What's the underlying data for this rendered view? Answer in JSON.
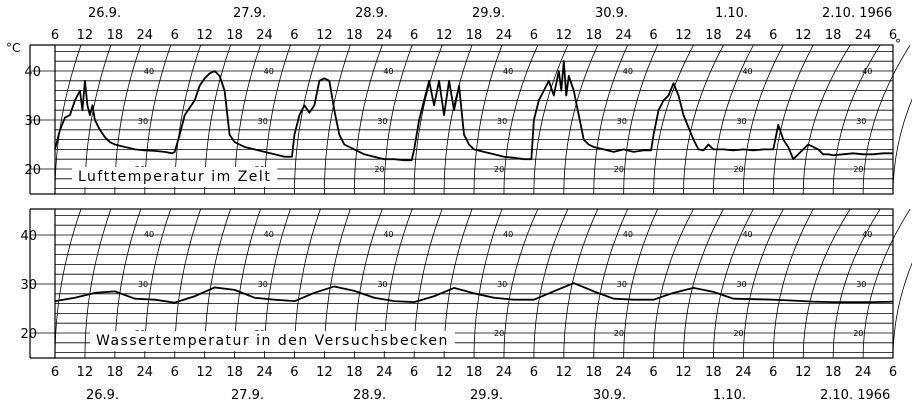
{
  "chart_data": [
    {
      "type": "line",
      "title": "Lufttemperatur im Zelt",
      "ylabel": "°C",
      "yunit_right": "°",
      "ylim": [
        16,
        46
      ],
      "y_ticks": [
        20,
        30,
        40
      ],
      "x_hour_labels": [
        "6",
        "12",
        "18",
        "24",
        "6",
        "12",
        "18",
        "24",
        "6",
        "12",
        "18",
        "24",
        "6",
        "12",
        "18",
        "24",
        "6",
        "12",
        "18",
        "24",
        "6",
        "12",
        "18",
        "24",
        "6",
        "12",
        "18",
        "24",
        "6"
      ],
      "date_labels": [
        "26.9.",
        "27.9.",
        "28.9.",
        "29.9.",
        "30.9.",
        "1.10.",
        "2.10. 1966"
      ],
      "inner_scale_labels": [
        "40",
        "30",
        "20"
      ],
      "x": [
        0,
        1,
        2,
        3,
        4,
        5,
        5.5,
        6,
        6.5,
        7,
        7.5,
        8,
        9,
        10,
        11,
        12,
        14,
        16,
        18,
        20,
        22,
        23.5,
        24,
        25,
        26,
        28,
        29,
        30,
        31,
        32,
        33,
        34,
        35,
        36,
        37,
        38,
        40,
        42,
        44,
        46,
        47.5,
        48,
        49,
        50,
        51,
        52,
        53,
        54,
        55,
        56,
        57,
        58,
        60,
        62,
        64,
        66,
        68,
        70,
        71.5,
        72,
        73,
        74,
        75,
        76,
        77,
        78,
        79,
        80,
        81,
        82,
        83,
        84,
        86,
        88,
        90,
        92,
        94,
        95.5,
        96,
        97,
        98,
        99,
        100,
        101,
        101.5,
        102,
        102.5,
        103,
        104,
        105,
        106,
        107,
        108,
        110,
        112,
        114,
        116,
        118,
        119.5,
        120,
        121,
        122,
        123,
        124,
        125,
        126,
        127,
        128,
        129,
        130,
        131,
        132,
        134,
        136,
        138,
        140,
        142,
        144,
        145,
        146,
        147,
        148,
        149,
        150,
        151,
        152,
        153,
        154,
        155,
        156,
        158,
        160,
        162,
        164,
        166,
        168
      ],
      "y": [
        24,
        28,
        30.5,
        31,
        34,
        36,
        32,
        38,
        33,
        31,
        33,
        30,
        28,
        26.5,
        25.5,
        25,
        24.5,
        24,
        23.8,
        23.7,
        23.5,
        23.2,
        23.5,
        27,
        31,
        34,
        37,
        38.5,
        39.5,
        40,
        39,
        36,
        27,
        25.5,
        25,
        24.5,
        24,
        23.5,
        23,
        22.5,
        22.5,
        27,
        31,
        33,
        31.5,
        33,
        38,
        38.5,
        38,
        32,
        27,
        25,
        24,
        23,
        22.5,
        22,
        22,
        21.8,
        21.8,
        24,
        30,
        34,
        38,
        33,
        38,
        31,
        38,
        32,
        37,
        27,
        25,
        24,
        23.5,
        23,
        22.5,
        22.3,
        22,
        22,
        30,
        34,
        36,
        38,
        35,
        40,
        36,
        42,
        35,
        39,
        36,
        31,
        26,
        25,
        24.5,
        24,
        23.5,
        24,
        23.5,
        23.8,
        23.8,
        27,
        32,
        34,
        35,
        37.5,
        35,
        31,
        28.5,
        26,
        24,
        23.8,
        25,
        24,
        24,
        23.8,
        24,
        23.8,
        24,
        24,
        29,
        26,
        24.5,
        22,
        23,
        24,
        25,
        24.5,
        24,
        23,
        23,
        22.8,
        23,
        23.2,
        23,
        23,
        23.2,
        23.2
      ]
    },
    {
      "type": "line",
      "title": "Wassertemperatur in den Versuchsbecken",
      "ylabel": "",
      "ylim": [
        16,
        46
      ],
      "y_ticks": [
        20,
        30,
        40
      ],
      "x_hour_labels": [
        "6",
        "12",
        "18",
        "24",
        "6",
        "12",
        "18",
        "24",
        "6",
        "12",
        "18",
        "24",
        "6",
        "12",
        "18",
        "24",
        "6",
        "12",
        "18",
        "24",
        "6",
        "12",
        "18",
        "24",
        "6",
        "12",
        "18",
        "24",
        "6"
      ],
      "date_labels": [
        "26.9.",
        "27.9.",
        "28.9.",
        "29.9.",
        "30.9.",
        "1.10.",
        "2.10. 1966"
      ],
      "inner_scale_labels": [
        "40",
        "30",
        "20"
      ],
      "x": [
        0,
        4,
        8,
        12,
        16,
        20,
        24,
        28,
        32,
        36,
        40,
        44,
        48,
        52,
        56,
        60,
        64,
        68,
        72,
        76,
        80,
        84,
        88,
        92,
        96,
        100,
        104,
        108,
        112,
        116,
        120,
        124,
        128,
        132,
        136,
        140,
        144,
        148,
        152,
        156,
        160,
        164,
        168
      ],
      "y": [
        26.5,
        27.2,
        28.2,
        28.5,
        27,
        26.8,
        26.2,
        27.5,
        29.3,
        28.8,
        27.2,
        26.8,
        26.5,
        28.2,
        29.5,
        28.6,
        27.2,
        26.5,
        26.3,
        27.5,
        29.2,
        28.1,
        27.2,
        26.8,
        26.8,
        28.5,
        30.2,
        28.5,
        27,
        26.8,
        26.8,
        28.2,
        29.2,
        28.4,
        27,
        26.9,
        26.8,
        26.6,
        26.4,
        26.3,
        26.3,
        26.3,
        26.4
      ]
    }
  ]
}
